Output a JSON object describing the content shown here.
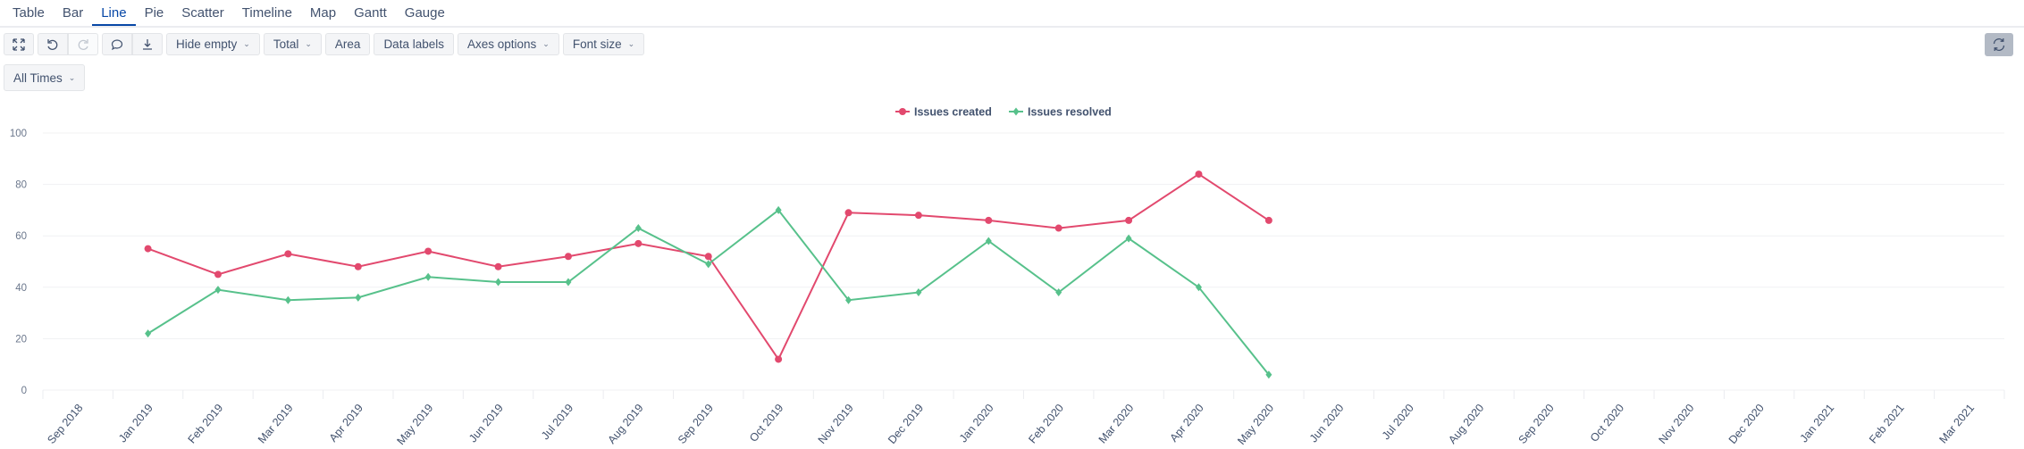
{
  "tabs": [
    "Table",
    "Bar",
    "Line",
    "Pie",
    "Scatter",
    "Timeline",
    "Map",
    "Gantt",
    "Gauge"
  ],
  "active_tab": "Line",
  "toolbar": {
    "fullscreen_icon": "expand-arrows-icon",
    "undo_icon": "undo-icon",
    "redo_icon": "redo-icon",
    "comment_icon": "speech-bubble-icon",
    "download_icon": "download-icon",
    "hide_empty": "Hide empty",
    "total": "Total",
    "area": "Area",
    "data_labels": "Data labels",
    "axes_options": "Axes options",
    "font_size": "Font size",
    "refresh_icon": "refresh-icon"
  },
  "time_filter": "All Times",
  "colors": {
    "created": "#e2496e",
    "resolved": "#57c18b",
    "accent": "#0747a6"
  },
  "chart_data": {
    "type": "line",
    "categories": [
      "Sep 2018",
      "Jan 2019",
      "Feb 2019",
      "Mar 2019",
      "Apr 2019",
      "May 2019",
      "Jun 2019",
      "Jul 2019",
      "Aug 2019",
      "Sep 2019",
      "Oct 2019",
      "Nov 2019",
      "Dec 2019",
      "Jan 2020",
      "Feb 2020",
      "Mar 2020",
      "Apr 2020",
      "May 2020",
      "Jun 2020",
      "Jul 2020",
      "Aug 2020",
      "Sep 2020",
      "Oct 2020",
      "Nov 2020",
      "Dec 2020",
      "Jan 2021",
      "Feb 2021",
      "Mar 2021"
    ],
    "series": [
      {
        "name": "Issues created",
        "color": "#e2496e",
        "values": [
          null,
          55,
          45,
          53,
          48,
          54,
          48,
          52,
          57,
          52,
          12,
          69,
          68,
          66,
          63,
          66,
          84,
          66,
          null,
          null,
          null,
          null,
          null,
          null,
          null,
          null,
          null,
          null
        ]
      },
      {
        "name": "Issues resolved",
        "color": "#57c18b",
        "values": [
          null,
          22,
          39,
          35,
          36,
          44,
          42,
          42,
          63,
          49,
          70,
          35,
          38,
          58,
          38,
          59,
          40,
          6,
          null,
          null,
          null,
          null,
          null,
          null,
          null,
          null,
          null,
          null
        ]
      }
    ],
    "ylim": [
      0,
      100
    ],
    "yticks": [
      0,
      20,
      40,
      60,
      80,
      100
    ],
    "grid": true,
    "legend": "top-center"
  }
}
